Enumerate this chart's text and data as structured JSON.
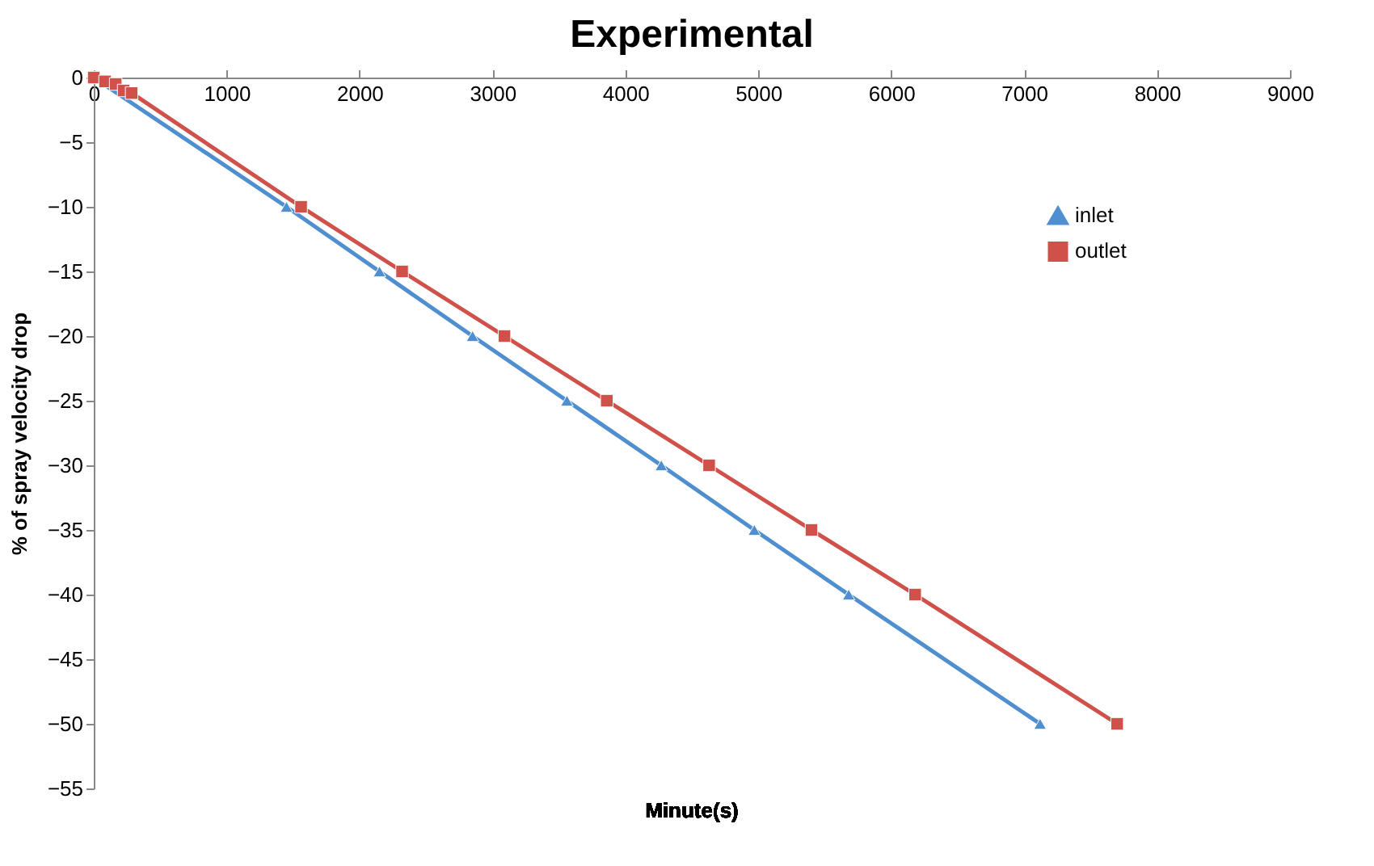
{
  "chart_data": {
    "type": "line",
    "title": "Experimental",
    "xlabel": "Minute(s)",
    "ylabel": "% of spray velocity drop",
    "xlim": [
      0,
      9000
    ],
    "xticks": [
      0,
      1000,
      2000,
      3000,
      4000,
      5000,
      6000,
      7000,
      8000,
      9000
    ],
    "ylim": [
      -55,
      0
    ],
    "yticks": [
      0,
      -5,
      -10,
      -15,
      -20,
      -25,
      -30,
      -35,
      -40,
      -45,
      -50,
      -55
    ],
    "grid": false,
    "legend": "right",
    "series": [
      {
        "name": "inlet",
        "color": "#4f8fd0",
        "marker": "triangle",
        "x": [
          0,
          1450,
          2150,
          2850,
          3560,
          4270,
          4970,
          5680,
          7120
        ],
        "values": [
          0,
          -10,
          -15,
          -20,
          -25,
          -30,
          -35,
          -40,
          -50
        ]
      },
      {
        "name": "outlet",
        "color": "#d0504a",
        "marker": "square",
        "x": [
          0,
          85,
          165,
          225,
          285,
          1560,
          2320,
          3090,
          3860,
          4630,
          5400,
          6180,
          7700
        ],
        "values": [
          0,
          -0.3,
          -0.5,
          -1,
          -1.2,
          -10,
          -15,
          -20,
          -25,
          -30,
          -35,
          -40,
          -50
        ]
      }
    ]
  }
}
